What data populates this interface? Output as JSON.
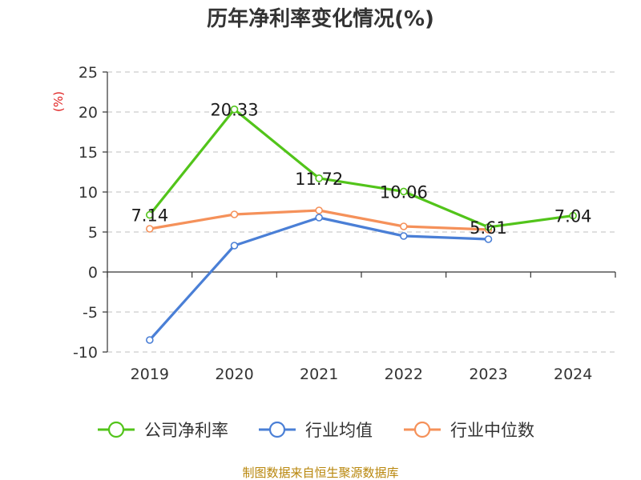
{
  "chart_data": {
    "type": "line",
    "title": "历年净利率变化情况(%)",
    "ylabel": "(%)",
    "xlabel": "",
    "categories": [
      "2019",
      "2020",
      "2021",
      "2022",
      "2023",
      "2024"
    ],
    "ylim": [
      -10,
      25
    ],
    "yticks": [
      -10,
      -5,
      0,
      5,
      10,
      15,
      20,
      25
    ],
    "grid": true,
    "legend_position": "bottom",
    "series": [
      {
        "name": "公司净利率",
        "color": "#52c41a",
        "values": [
          7.14,
          20.33,
          11.72,
          10.06,
          5.61,
          7.04
        ],
        "labels": [
          "7.14",
          "20.33",
          "11.72",
          "10.06",
          "5.61",
          "7.04"
        ]
      },
      {
        "name": "行业均值",
        "color": "#4a7fd6",
        "values": [
          -8.5,
          3.3,
          6.8,
          4.5,
          4.1,
          null
        ]
      },
      {
        "name": "行业中位数",
        "color": "#f5915a",
        "values": [
          5.4,
          7.2,
          7.7,
          5.7,
          5.3,
          null
        ]
      }
    ]
  },
  "source": "制图数据来自恒生聚源数据库"
}
